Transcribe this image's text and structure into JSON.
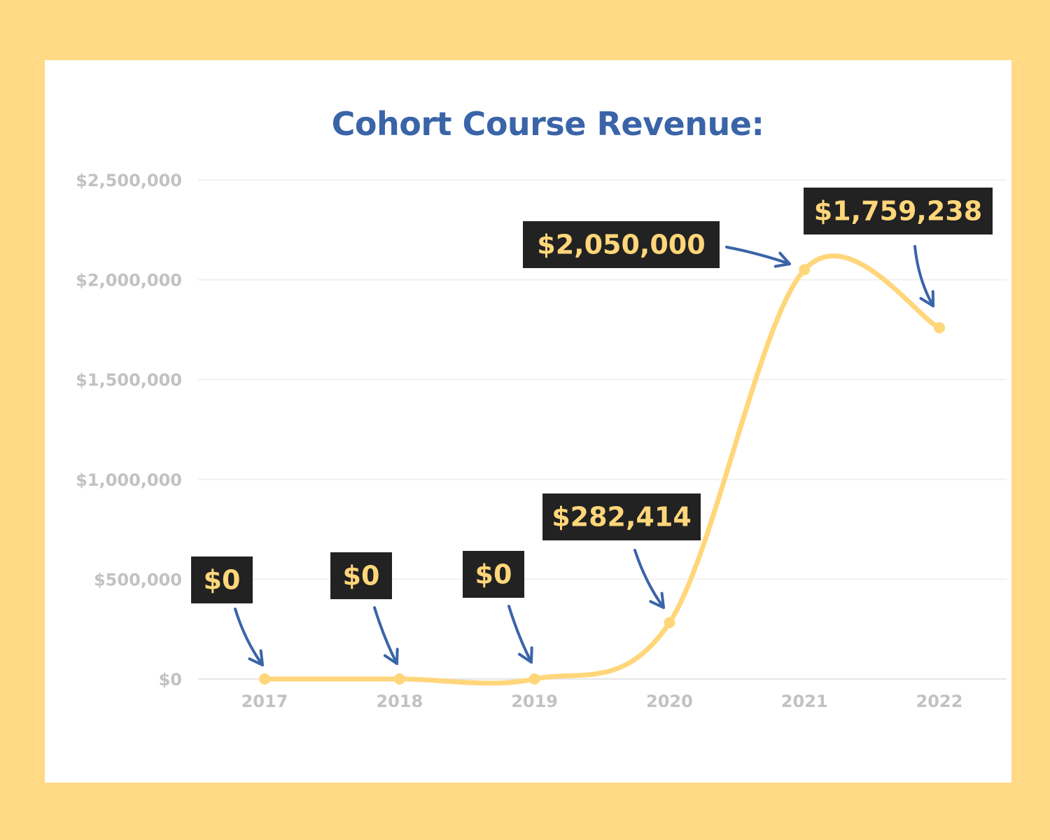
{
  "colors": {
    "frame_background": "#FFD986",
    "card_background": "#FFFFFF",
    "title": "#3A64A8",
    "axis_text": "#C2C2C2",
    "gridline": "#F1F1F1",
    "line": "#FFD67A",
    "label_box": "#222222",
    "label_text": "#FFD67A",
    "arrow": "#3A64A8"
  },
  "chart_data": {
    "type": "line",
    "title": "Cohort Course Revenue:",
    "xlabel": "",
    "ylabel": "",
    "categories": [
      "2017",
      "2018",
      "2019",
      "2020",
      "2021",
      "2022"
    ],
    "values": [
      0,
      0,
      0,
      282414,
      2050000,
      1759238
    ],
    "data_labels": [
      "$0",
      "$0",
      "$0",
      "$282,414",
      "$2,050,000",
      "$1,759,238"
    ],
    "ylim": [
      0,
      2500000
    ],
    "yticks": [
      0,
      500000,
      1000000,
      1500000,
      2000000,
      2500000
    ],
    "ytick_labels": [
      "$0",
      "$500,000",
      "$1,000,000",
      "$1,500,000",
      "$2,000,000",
      "$2,500,000"
    ],
    "grid": true,
    "smooth": true,
    "legend": "none"
  }
}
